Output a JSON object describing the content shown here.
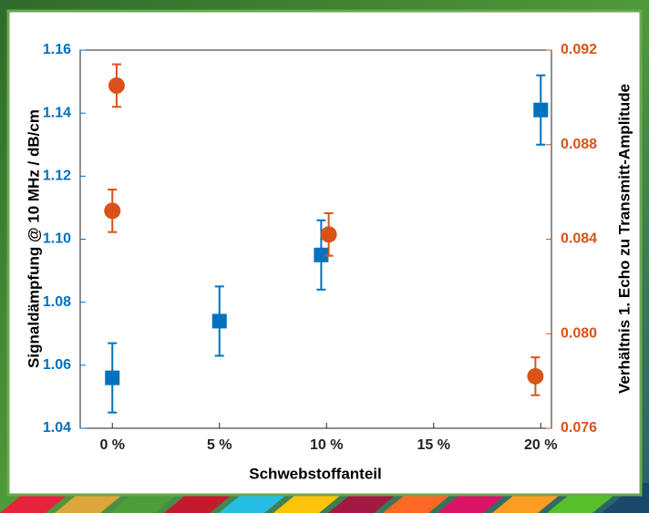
{
  "chart_data": {
    "type": "scatter",
    "xlabel": "Schwebstoffanteil",
    "ylabel": "Signaldämpfung @ 10 MHz / dB/cm",
    "y2label": "Verhältnis 1. Echo zu Transmitt-Amplitude",
    "xlim": [
      -1.5,
      20.5
    ],
    "xticks": [
      {
        "value": 0,
        "label": "0 %"
      },
      {
        "value": 5,
        "label": "5 %"
      },
      {
        "value": 10,
        "label": "10 %"
      },
      {
        "value": 15,
        "label": "15 %"
      },
      {
        "value": 20,
        "label": "20 %"
      }
    ],
    "ylim": [
      1.04,
      1.16
    ],
    "yticks": [
      {
        "value": 1.04,
        "label": "1.04"
      },
      {
        "value": 1.06,
        "label": "1.06"
      },
      {
        "value": 1.08,
        "label": "1.08"
      },
      {
        "value": 1.1,
        "label": "1.10"
      },
      {
        "value": 1.12,
        "label": "1.12"
      },
      {
        "value": 1.14,
        "label": "1.14"
      },
      {
        "value": 1.16,
        "label": "1.16"
      }
    ],
    "y2lim": [
      0.076,
      0.092
    ],
    "y2ticks": [
      0.076,
      0.08,
      0.084,
      0.088,
      0.092
    ],
    "y2tick_labels": [
      "0.076",
      "0.080",
      "0.084",
      "0.088",
      "0.092"
    ],
    "series": [
      {
        "color": "#0072bd",
        "marker": "square",
        "x": [
          0,
          5,
          9.75,
          20
        ],
        "values": [
          1.056,
          1.074,
          1.095,
          1.141
        ],
        "errors": [
          0.011,
          0.011,
          0.011,
          0.011
        ]
      },
      {
        "color": "#d95319",
        "marker": "circle",
        "axis": "y2",
        "x": [
          0.2,
          0,
          10.1,
          19.75
        ],
        "values": [
          0.0905,
          0.0852,
          0.0842,
          0.0782
        ],
        "errors": [
          0.0009,
          0.0009,
          0.0009,
          0.0008
        ]
      }
    ]
  }
}
